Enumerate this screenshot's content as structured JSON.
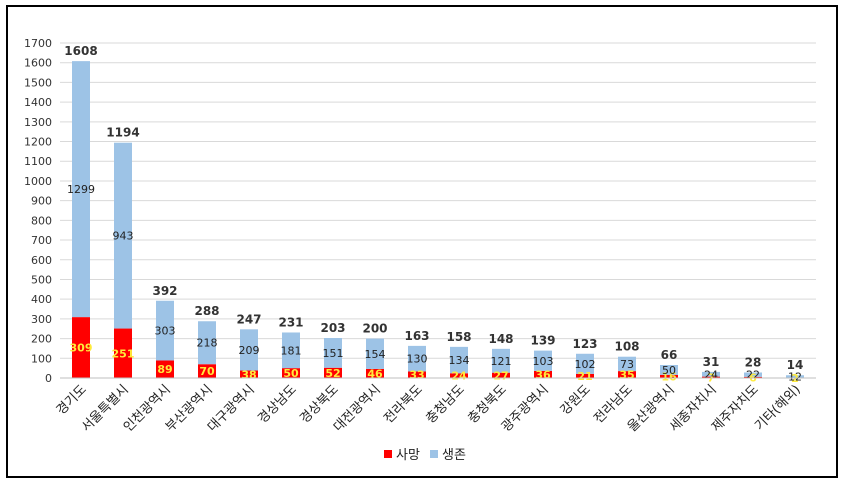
{
  "chart_data": {
    "type": "bar",
    "stacked": true,
    "categories": [
      "경기도",
      "서울특별시",
      "인천광역시",
      "부산광역시",
      "대구광역시",
      "경상남도",
      "경상북도",
      "대전광역시",
      "전라북도",
      "충청남도",
      "충청북도",
      "광주광역시",
      "강원도",
      "전라남도",
      "울산광역시",
      "세종자치시",
      "제주자치도",
      "기타(해외)"
    ],
    "series": [
      {
        "name": "사망",
        "color": "#ff0000",
        "values": [
          309,
          251,
          89,
          70,
          38,
          50,
          52,
          46,
          33,
          24,
          27,
          36,
          21,
          35,
          16,
          7,
          6,
          2
        ]
      },
      {
        "name": "생존",
        "color": "#9dc3e6",
        "values": [
          1299,
          943,
          303,
          218,
          209,
          181,
          151,
          154,
          130,
          134,
          121,
          103,
          102,
          73,
          50,
          24,
          22,
          12
        ]
      }
    ],
    "totals": [
      1608,
      1194,
      392,
      288,
      247,
      231,
      203,
      200,
      163,
      158,
      148,
      139,
      123,
      108,
      66,
      31,
      28,
      14
    ],
    "ylim": [
      0,
      1700
    ],
    "yticks": [
      0,
      100,
      200,
      300,
      400,
      500,
      600,
      700,
      800,
      900,
      1000,
      1100,
      1200,
      1300,
      1400,
      1500,
      1600,
      1700
    ],
    "grid": true,
    "legend": "bottom",
    "title": "",
    "xlabel": "",
    "ylabel": ""
  }
}
